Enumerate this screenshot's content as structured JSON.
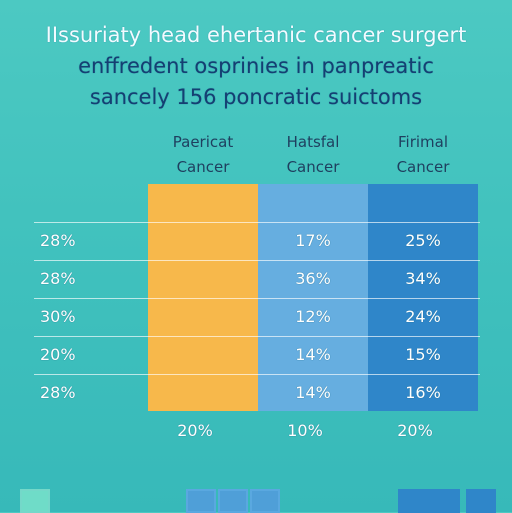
{
  "chart_data": {
    "type": "table",
    "title_lines": [
      "IIssuriaty head ehertanic cancer surgert",
      "enffredent osprinies in panpreatic",
      "sancely 156 poncratic suictoms"
    ],
    "columns": [
      {
        "line1": "Paericat",
        "line2": "Cancer",
        "color": "#f7b84b"
      },
      {
        "line1": "Hatsfal",
        "line2": "Cancer",
        "color": "#66aee0"
      },
      {
        "line1": "Firimal",
        "line2": "Cancer",
        "color": "#2f86c9"
      }
    ],
    "rows": [
      {
        "label": "28%",
        "values": [
          "",
          "17%",
          "25%"
        ]
      },
      {
        "label": "28%",
        "values": [
          "",
          "36%",
          "34%"
        ]
      },
      {
        "label": "30%",
        "values": [
          "",
          "12%",
          "24%"
        ]
      },
      {
        "label": "20%",
        "values": [
          "",
          "14%",
          "15%"
        ]
      },
      {
        "label": "28%",
        "values": [
          "",
          "14%",
          "16%"
        ]
      }
    ],
    "totals": [
      "20%",
      "10%",
      "20%"
    ],
    "legend": [
      {
        "color": "#74d8c9"
      },
      {
        "color": "#5aa8e0"
      },
      {
        "color": "#5aa8e0"
      },
      {
        "color": "#5aa8e0"
      },
      {
        "color": "#2f86c9"
      },
      {
        "color": "#2f86c9"
      }
    ]
  }
}
